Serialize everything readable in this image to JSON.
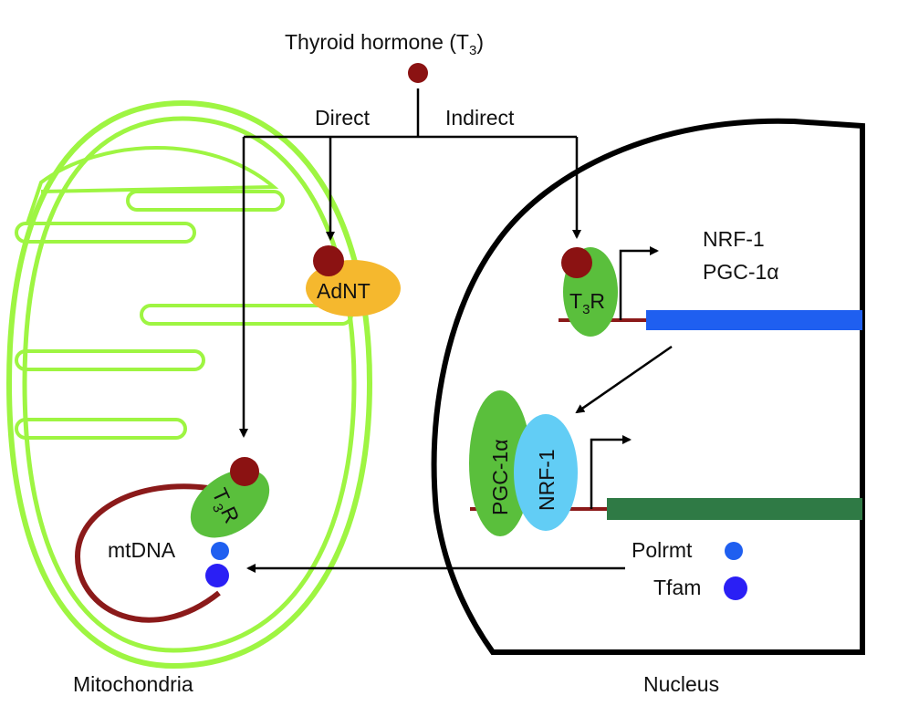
{
  "hormone": {
    "label": "Thyroid hormone (T",
    "sub": "3",
    "suffix": ")"
  },
  "paths": {
    "direct": "Direct",
    "indirect": "Indirect"
  },
  "adnt": {
    "label": "AdNT"
  },
  "receptor_nuclear": {
    "label": "T",
    "sub": "3",
    "suffix": "R"
  },
  "receptor_mito": {
    "label": "T",
    "sub": "3",
    "suffix": "R"
  },
  "genes": {
    "nrf1": "NRF-1",
    "pgc1a": "PGC-1α"
  },
  "complex": {
    "pgc1a": "PGC-1α",
    "nrf1": "NRF-1"
  },
  "factors": {
    "polrmt": "Polrmt",
    "tfam": "Tfam"
  },
  "mtdna": {
    "label": "mtDNA"
  },
  "captions": {
    "mitochondria": "Mitochondria",
    "nucleus": "Nucleus"
  },
  "colors": {
    "mito_membrane": "#9ef542",
    "hormone": "#8b1212",
    "adnt": "#f5b82e",
    "receptor": "#5abf3c",
    "dna_line": "#8b1a1a",
    "nrf1_gene_bar": "#1f5ff0",
    "target_gene_bar": "#2f7a45",
    "nrf1_protein": "#62cdf5",
    "polrmt": "#1f5ff0",
    "tfam": "#2a1ff5"
  }
}
